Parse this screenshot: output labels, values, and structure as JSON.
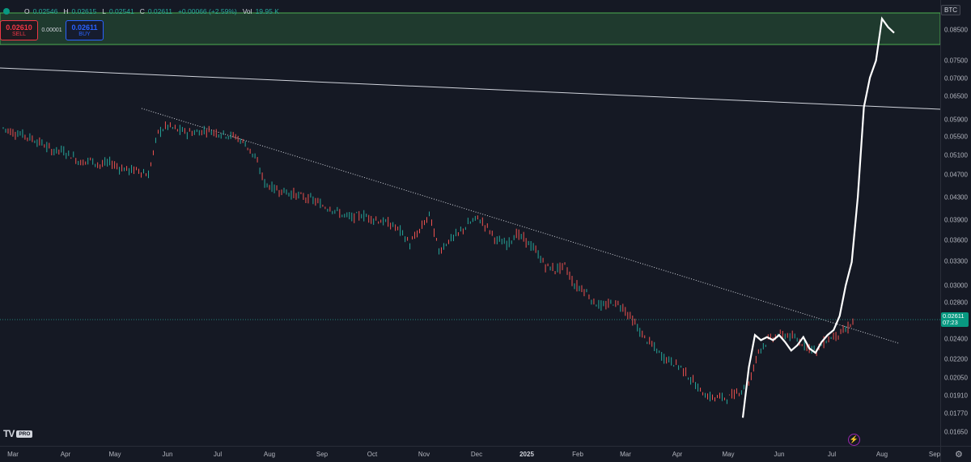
{
  "header": {
    "open_label": "O",
    "open": "0.02546",
    "high_label": "H",
    "high": "0.02615",
    "low_label": "L",
    "low": "0.02541",
    "close_label": "C",
    "close": "0.02611",
    "change": "+0.00066 (+2.59%)",
    "vol_label": "Vol",
    "vol": "19.95 K"
  },
  "trade": {
    "sell_price": "0.02610",
    "sell_label": "SELL",
    "spread": "0.00001",
    "buy_price": "0.02611",
    "buy_label": "BUY"
  },
  "logo": {
    "mark": "TV",
    "badge": "PRO"
  },
  "price_axis": {
    "symbol": "BTC",
    "labels": [
      "0.08500",
      "0.07500",
      "0.07000",
      "0.06500",
      "0.05900",
      "0.05500",
      "0.05100",
      "0.04700",
      "0.04300",
      "0.03900",
      "0.03600",
      "0.03300",
      "0.03000",
      "0.02800",
      "0.02400",
      "0.02200",
      "0.02050",
      "0.01910",
      "0.01770",
      "0.01650"
    ],
    "current_price": "0.02611",
    "countdown": "07:23"
  },
  "time_axis": {
    "labels": [
      "Mar",
      "Apr",
      "May",
      "Jun",
      "Jul",
      "Aug",
      "Sep",
      "Oct",
      "Nov",
      "Dec",
      "2025",
      "Feb",
      "Mar",
      "Apr",
      "May",
      "Jun",
      "Jul",
      "Aug",
      "Sep"
    ]
  },
  "icons": {
    "alert": "lightning-icon",
    "settings": "gear-icon"
  },
  "colors": {
    "background": "#151924",
    "up": "#26a69a",
    "down": "#ef5350",
    "zone_fill": "#1f3a2e",
    "zone_border": "#4caf50",
    "trendline": "#d1d4dc",
    "overlay_series": "#ffffff"
  },
  "chart_data": {
    "type": "line",
    "series": [
      {
        "values": [
          0.057,
          0.056,
          0.0555,
          0.0545,
          0.0535,
          0.052,
          0.052,
          0.051,
          0.0495,
          0.05,
          0.049,
          0.0495,
          0.0485,
          0.048,
          0.048,
          0.047,
          0.056,
          0.0575,
          0.0565,
          0.056,
          0.056,
          0.0565,
          0.056,
          0.0555,
          0.055,
          0.0535,
          0.0505,
          0.0455,
          0.0445,
          0.044,
          0.0435,
          0.043,
          0.0425,
          0.0415,
          0.041,
          0.04,
          0.0395,
          0.04,
          0.0395,
          0.039,
          0.0385,
          0.0375,
          0.0355,
          0.0375,
          0.04,
          0.0345,
          0.036,
          0.037,
          0.0385,
          0.0395,
          0.038,
          0.036,
          0.0355,
          0.037,
          0.036,
          0.0345,
          0.0325,
          0.032,
          0.0325,
          0.03,
          0.0295,
          0.028,
          0.0275,
          0.028,
          0.0275,
          0.026,
          0.0245,
          0.0235,
          0.0225,
          0.022,
          0.0215,
          0.0205,
          0.0195,
          0.019,
          0.019,
          0.019,
          0.0195,
          0.02,
          0.023,
          0.024,
          0.0245,
          0.0245,
          0.024,
          0.0235,
          0.023,
          0.024,
          0.0245,
          0.025,
          0.0261
        ]
      },
      {
        "values": [
          0.0175,
          0.0215,
          0.0245,
          0.024,
          0.0243,
          0.024,
          0.0245,
          0.0238,
          0.023,
          0.0235,
          0.0243,
          0.0232,
          0.0228,
          0.0238,
          0.0245,
          0.025,
          0.0265,
          0.03,
          0.033,
          0.043,
          0.062,
          0.07,
          0.075,
          0.089,
          0.086,
          0.084
        ]
      }
    ],
    "trendlines": [
      {
        "from": [
          "Feb 2024",
          0.072
        ],
        "to": [
          "Sep 2025",
          0.0625
        ]
      },
      {
        "from": [
          "May 2024",
          0.06
        ],
        "to": [
          "Aug 2025",
          0.024
        ]
      }
    ],
    "zone": [
      0.0795,
      0.09
    ],
    "current_price": 0.02611,
    "y_scale": "log"
  }
}
